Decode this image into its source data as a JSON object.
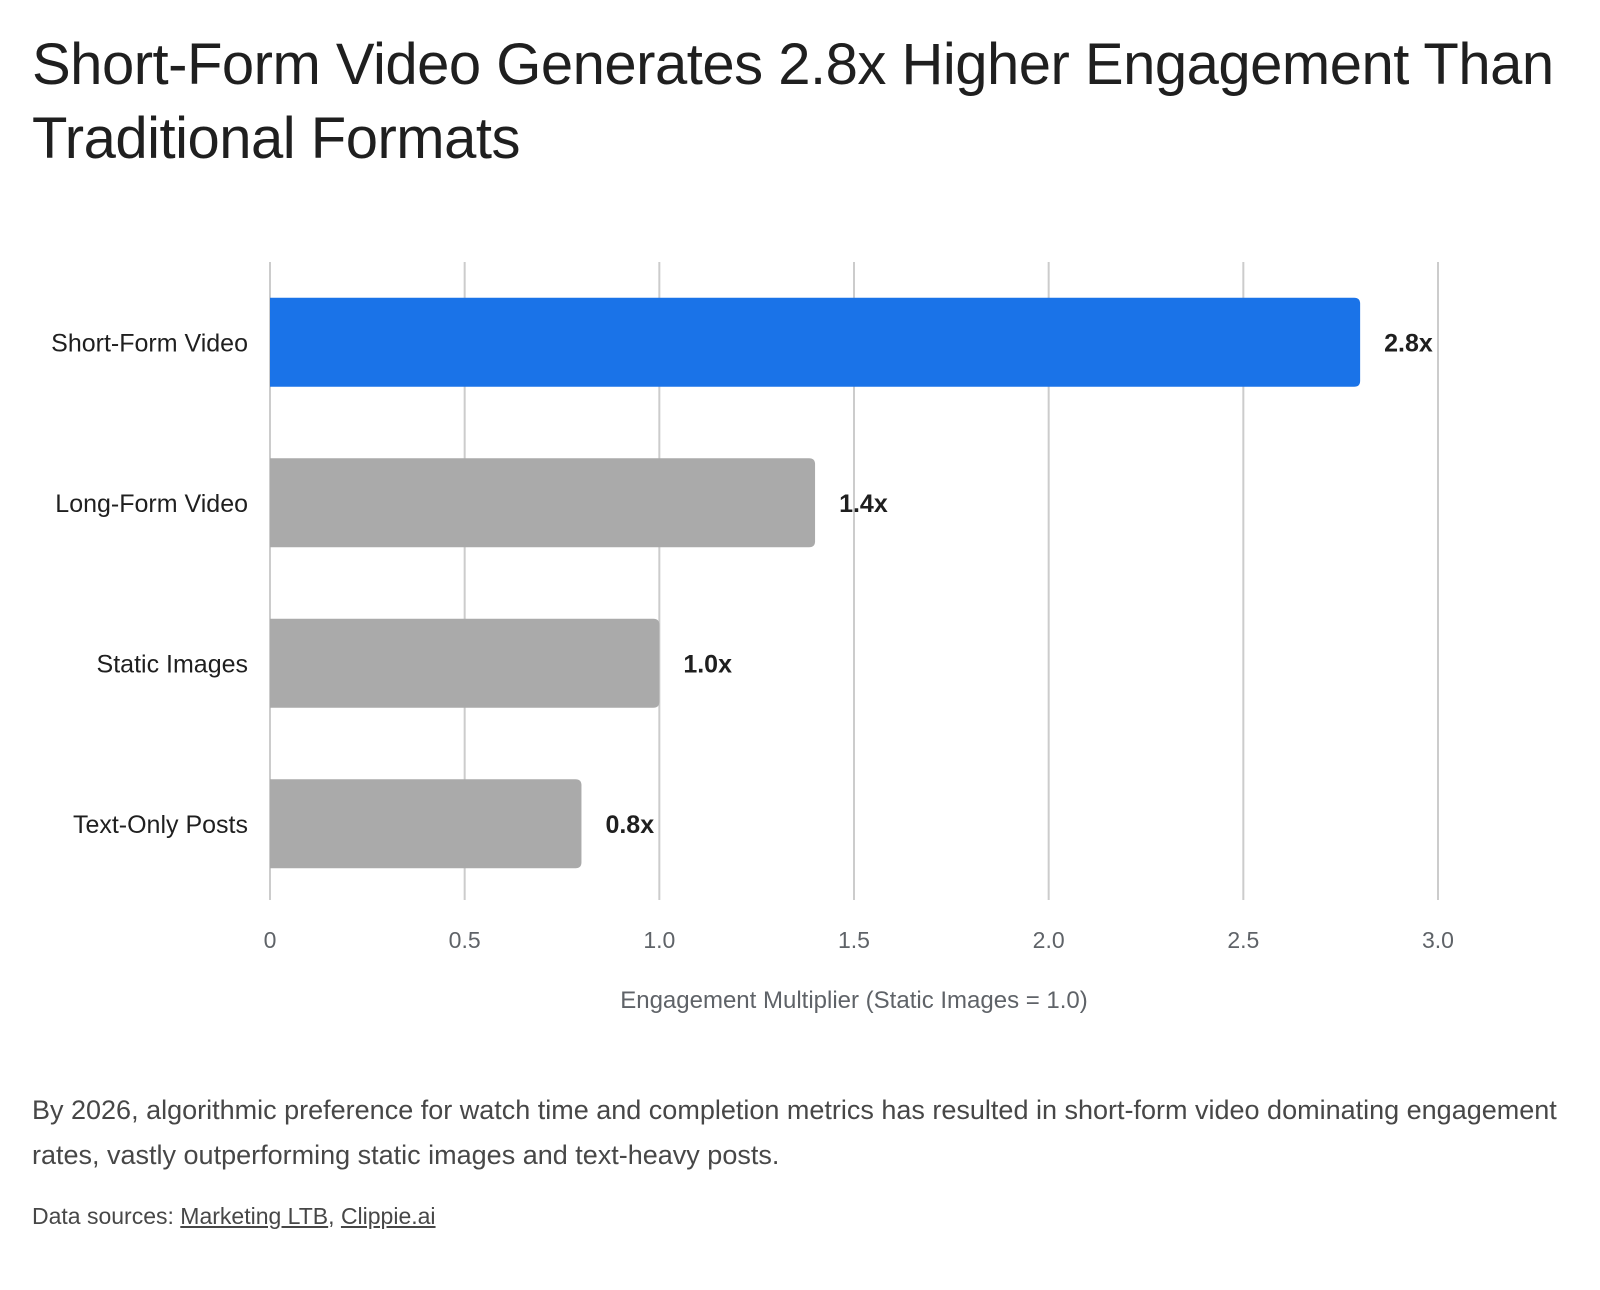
{
  "chart_data": {
    "type": "bar",
    "orientation": "horizontal",
    "title": "Short-Form Video Generates 2.8x Higher Engagement Than Traditional Formats",
    "categories": [
      "Short-Form Video",
      "Long-Form Video",
      "Static Images",
      "Text-Only Posts"
    ],
    "values": [
      2.8,
      1.4,
      1.0,
      0.8
    ],
    "data_labels": [
      "2.8x",
      "1.4x",
      "1.0x",
      "0.8x"
    ],
    "xlabel": "Engagement Multiplier (Static Images = 1.0)",
    "ylabel": "",
    "xlim": [
      0,
      3.0
    ],
    "x_ticks": [
      0,
      0.5,
      1.0,
      1.5,
      2.0,
      2.5,
      3.0
    ],
    "x_tick_labels": [
      "0",
      "0.5",
      "1.0",
      "1.5",
      "2.0",
      "2.5",
      "3.0"
    ],
    "grid": "vertical",
    "legend": "none",
    "colors": {
      "highlight": "#1a73e8",
      "default": "#aaaaaa",
      "grid": "#cccccc"
    },
    "highlight_index": 0
  },
  "caption": "By 2026, algorithmic preference for watch time and completion metrics has resulted in short-form video dominating engagement rates, vastly outperforming static images and text-heavy posts.",
  "sources": {
    "prefix": "Data sources: ",
    "separator": ", ",
    "links": [
      "Marketing LTB",
      "Clippie.ai"
    ]
  }
}
